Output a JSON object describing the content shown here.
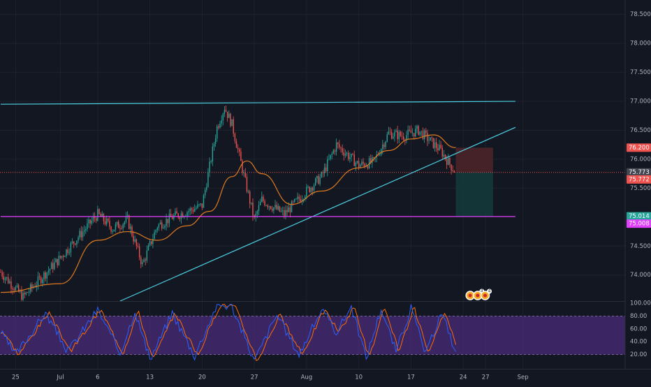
{
  "theme": {
    "background": "#131722",
    "grid": "#1e222d",
    "axis_text": "#b2b5be",
    "candle_up": "#26a69a",
    "candle_down": "#ef5350",
    "ma_color": "#e07b1f",
    "trendline_color": "#4dd0e1",
    "support_color": "#e040fb",
    "current_price_line": "#ef5350",
    "stoch_band_fill": "#4a2c7a",
    "stoch_k": "#2962ff",
    "stoch_d": "#ff6d00",
    "stop_zone": "#4a2328",
    "target_zone": "#14393b"
  },
  "chart_data": [
    {
      "type": "candlestick",
      "title": "",
      "ylim": [
        73.55,
        78.75
      ],
      "y_ticks": [
        "78.500",
        "78.000",
        "77.500",
        "77.000",
        "76.500",
        "76.000",
        "75.500",
        "74.500",
        "74.000"
      ],
      "x_ticks": [
        "25",
        "Jul",
        "6",
        "13",
        "20",
        "27",
        "Aug",
        "10",
        "17",
        "24",
        "27",
        "Sep"
      ],
      "price_path_anchors": [
        [
          "Jun 23",
          74.05
        ],
        [
          "Jun 26",
          73.62
        ],
        [
          "Jul 1",
          74.3
        ],
        [
          "Jul 6",
          75.05
        ],
        [
          "Jul 8",
          74.8
        ],
        [
          "Jul 10",
          74.95
        ],
        [
          "Jul 12",
          74.18
        ],
        [
          "Jul 14",
          74.85
        ],
        [
          "Jul 16",
          75.0
        ],
        [
          "Jul 20",
          75.2
        ],
        [
          "Jul 22",
          76.55
        ],
        [
          "Jul 23",
          76.9
        ],
        [
          "Jul 24",
          76.6
        ],
        [
          "Jul 26",
          75.5
        ],
        [
          "Jul 27",
          74.95
        ],
        [
          "Jul 28",
          75.3
        ],
        [
          "Jul 31",
          75.05
        ],
        [
          "Aug 3",
          75.45
        ],
        [
          "Aug 5",
          75.7
        ],
        [
          "Aug 7",
          76.25
        ],
        [
          "Aug 10",
          75.9
        ],
        [
          "Aug 12",
          75.95
        ],
        [
          "Aug 14",
          76.45
        ],
        [
          "Aug 16",
          76.4
        ],
        [
          "Aug 18",
          76.5
        ],
        [
          "Aug 21",
          76.15
        ],
        [
          "Aug 22",
          75.95
        ],
        [
          "Aug 23",
          75.77
        ]
      ],
      "moving_average": [
        [
          "Jun 23",
          73.7
        ],
        [
          "Jul 1",
          73.85
        ],
        [
          "Jul 6",
          74.6
        ],
        [
          "Jul 10",
          74.75
        ],
        [
          "Jul 14",
          74.6
        ],
        [
          "Jul 18",
          74.85
        ],
        [
          "Jul 21",
          75.1
        ],
        [
          "Jul 24",
          75.7
        ],
        [
          "Jul 26",
          75.97
        ],
        [
          "Jul 28",
          75.75
        ],
        [
          "Aug 1",
          75.22
        ],
        [
          "Aug 5",
          75.45
        ],
        [
          "Aug 10",
          75.85
        ],
        [
          "Aug 14",
          76.15
        ],
        [
          "Aug 17",
          76.35
        ],
        [
          "Aug 20",
          76.42
        ],
        [
          "Aug 23",
          76.2
        ]
      ],
      "trendlines": [
        {
          "name": "upper-channel",
          "from": [
            "Jun 23",
            76.95
          ],
          "to": [
            "Aug 31",
            77.0
          ]
        },
        {
          "name": "rising-support",
          "from": [
            "Jul 9",
            73.55
          ],
          "to": [
            "Aug 31",
            76.55
          ]
        },
        {
          "name": "horizontal-support",
          "from": [
            "Jun 23",
            75.01
          ],
          "to": [
            "Aug 31",
            75.01
          ]
        }
      ],
      "position_tool": {
        "entry": 75.773,
        "stop": 76.2,
        "target": 75.014,
        "start": "Aug 23",
        "end": "Aug 28"
      },
      "price_labels": [
        {
          "text": "76.200",
          "value": 76.2,
          "color": "#ef5350"
        },
        {
          "text": "75.773",
          "value": 75.773,
          "color": "#434651"
        },
        {
          "text": "75.772",
          "value": 75.772,
          "color": "#ef5350"
        },
        {
          "text": "75.014",
          "value": 75.014,
          "color": "#26a69a"
        },
        {
          "text": "75.008",
          "value": 75.008,
          "color": "#e040fb"
        }
      ],
      "event_markers": [
        {
          "icon": "dividend-marker-icon",
          "date": "Aug 24"
        },
        {
          "icon": "earnings-marker-icon",
          "date": "Aug 25",
          "badge": "4"
        },
        {
          "icon": "earnings-marker-icon",
          "date": "Aug 26",
          "badge": "4"
        }
      ]
    },
    {
      "type": "line",
      "title": "",
      "ylim": [
        0,
        100
      ],
      "y_ticks": [
        "100.00",
        "80.00",
        "60.00",
        "40.00",
        "20.00"
      ],
      "band": [
        20,
        80
      ],
      "series": [
        {
          "values_description_anchors": [
            [
              "Jun 23",
              55
            ],
            [
              "Jun 25",
              20
            ],
            [
              "Jun 29",
              85
            ],
            [
              "Jul 2",
              25
            ],
            [
              "Jul 6",
              90
            ],
            [
              "Jul 9",
              22
            ],
            [
              "Jul 11",
              88
            ],
            [
              "Jul 13",
              12
            ],
            [
              "Jul 16",
              85
            ],
            [
              "Jul 19",
              18
            ],
            [
              "Jul 22",
              98
            ],
            [
              "Jul 24",
              95
            ],
            [
              "Jul 27",
              10
            ],
            [
              "Jul 30",
              82
            ],
            [
              "Aug 2",
              20
            ],
            [
              "Aug 5",
              90
            ],
            [
              "Aug 7",
              55
            ],
            [
              "Aug 9",
              95
            ],
            [
              "Aug 11",
              15
            ],
            [
              "Aug 13",
              92
            ],
            [
              "Aug 15",
              25
            ],
            [
              "Aug 17",
              93
            ],
            [
              "Aug 19",
              20
            ],
            [
              "Aug 21",
              85
            ],
            [
              "Aug 22",
              60
            ],
            [
              "Aug 23",
              20
            ]
          ]
        }
      ]
    }
  ]
}
